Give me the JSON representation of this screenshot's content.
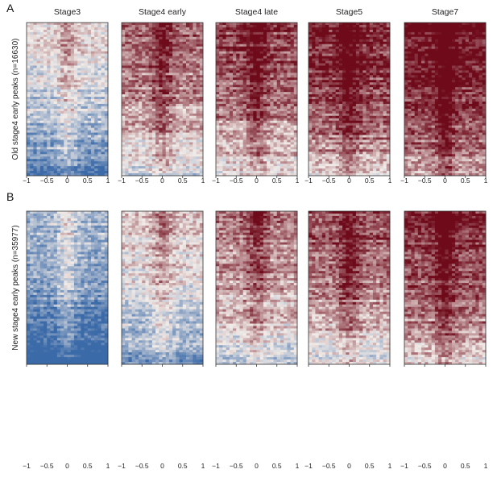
{
  "figure": {
    "panel_labels": [
      "A",
      "B"
    ],
    "column_titles": [
      "Stage3",
      "Stage4 early",
      "Stage4 late",
      "Stage5",
      "Stage7"
    ],
    "row_labels": [
      "Old stage4 early peaks (n=16630)",
      "New stage4 early peaks (n=35977)"
    ],
    "x_tick_labels": [
      "−1",
      "−0.5",
      "0",
      "0.5",
      "1"
    ]
  },
  "chart_data": {
    "type": "heatmap",
    "colormap": "blue-white-red (RdBu reversed)",
    "colors": {
      "low": "#3b6aa8",
      "mid": "#f2ece8",
      "high": "#6e0a1a"
    },
    "x": [
      -1,
      -0.5,
      0,
      0.5,
      1
    ],
    "xlim": [
      -1,
      1
    ],
    "rows": [
      {
        "row_label": "Old stage4 early peaks (n=16630)",
        "panel": "A",
        "columns": [
          {
            "title": "Stage3",
            "mean_signal_level": 0.42
          },
          {
            "title": "Stage4 early",
            "mean_signal_level": 0.72
          },
          {
            "title": "Stage4 late",
            "mean_signal_level": 0.8
          },
          {
            "title": "Stage5",
            "mean_signal_level": 0.88
          },
          {
            "title": "Stage7",
            "mean_signal_level": 0.94
          }
        ]
      },
      {
        "row_label": "New stage4 early peaks (n=35977)",
        "panel": "B",
        "columns": [
          {
            "title": "Stage3",
            "mean_signal_level": 0.22
          },
          {
            "title": "Stage4 early",
            "mean_signal_level": 0.5
          },
          {
            "title": "Stage4 late",
            "mean_signal_level": 0.68
          },
          {
            "title": "Stage5",
            "mean_signal_level": 0.76
          },
          {
            "title": "Stage7",
            "mean_signal_level": 0.86
          }
        ]
      }
    ]
  }
}
